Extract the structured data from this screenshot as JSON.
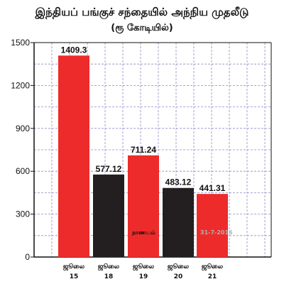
{
  "chart_data": {
    "type": "bar",
    "title": "இந்தியப் பங்குச் சந்தையில் அந்நிய முதலீடு",
    "subtitle": "(ரூ கோடியில்)",
    "categories": [
      [
        "ஜூலை",
        "15"
      ],
      [
        "ஜூலை",
        "18"
      ],
      [
        "ஜூலை",
        "19"
      ],
      [
        "ஜூலை",
        "20"
      ],
      [
        "ஜூலை",
        "21"
      ]
    ],
    "values": [
      1409.3,
      577.12,
      711.24,
      483.12,
      441.31
    ],
    "value_labels": [
      "1409.3",
      "577.12",
      "711.24",
      "483.12",
      "441.31"
    ],
    "bar_colors": [
      "#ee2b2b",
      "#231f20",
      "#ee2b2b",
      "#231f20",
      "#ee2b2b"
    ],
    "ylim": [
      0,
      1500
    ],
    "yticks": [
      0,
      300,
      600,
      900,
      1200,
      1500
    ],
    "grid": true,
    "annotation": {
      "left": "நாணயம்",
      "right": "31-7-2016"
    }
  }
}
